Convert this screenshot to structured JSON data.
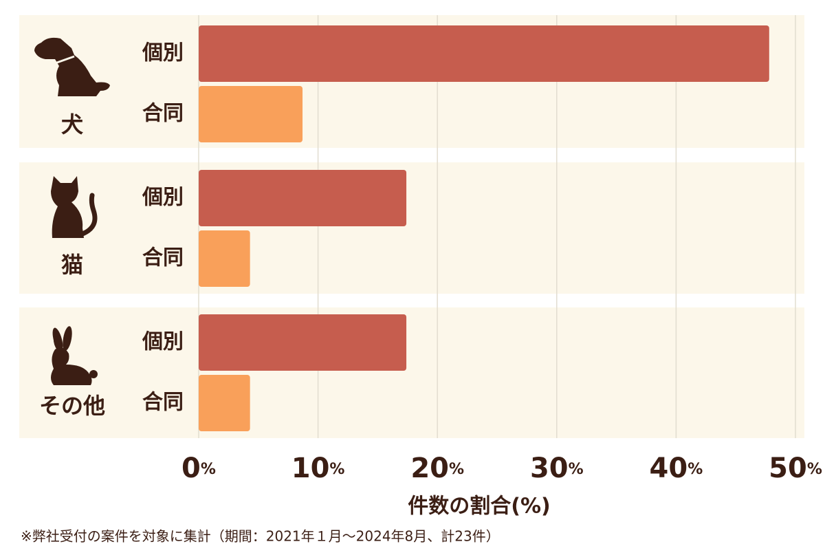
{
  "chart_data": {
    "type": "grouped-hbar",
    "categories": [
      "犬",
      "猫",
      "その他"
    ],
    "series": [
      {
        "name": "個別",
        "color": "#c65d4e",
        "values": [
          47.8,
          17.4,
          17.4
        ]
      },
      {
        "name": "合同",
        "color": "#f9a05a",
        "values": [
          8.7,
          4.3,
          4.3
        ]
      }
    ],
    "xlim": [
      0,
      50
    ],
    "xticks": [
      {
        "value": 0,
        "label": "0%"
      },
      {
        "value": 10,
        "label": "10%"
      },
      {
        "value": 20,
        "label": "20%"
      },
      {
        "value": 30,
        "label": "30%"
      },
      {
        "value": 40,
        "label": "40%"
      },
      {
        "value": 50,
        "label": "50%"
      }
    ],
    "grid": true,
    "xlabel": "件数の割合(%)",
    "footnote": "※弊社受付の案件を対象に集計（期間：2021年１月～2024年8月、計23件）"
  }
}
